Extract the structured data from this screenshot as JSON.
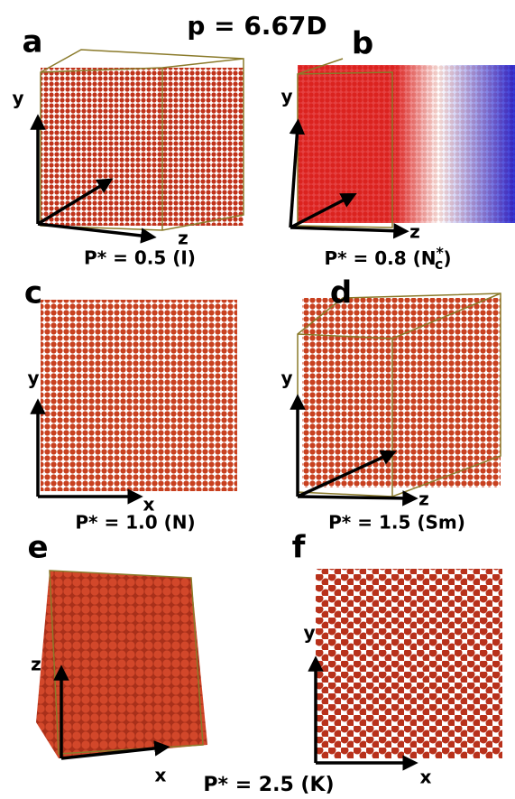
{
  "title": "p = 6.67D",
  "panels": [
    {
      "label": "a",
      "axes": [
        "y",
        "z"
      ],
      "caption": "P* = 0.5 (I)"
    },
    {
      "label": "b",
      "axes": [
        "y",
        "z"
      ],
      "caption": {
        "text": "P* = 0.8 (N",
        "sup": "*",
        "sub": "c",
        "close": ")"
      }
    },
    {
      "label": "c",
      "axes": [
        "y",
        "x"
      ],
      "caption": "P* = 1.0 (N)"
    },
    {
      "label": "d",
      "axes": [
        "y",
        "z"
      ],
      "caption": "P* = 1.5 (Sm)"
    },
    {
      "label": "e",
      "axes": [
        "z",
        "x"
      ]
    },
    {
      "label": "f",
      "axes": [
        "y",
        "x"
      ]
    }
  ],
  "shared_caption": "P* = 2.5 (K)"
}
